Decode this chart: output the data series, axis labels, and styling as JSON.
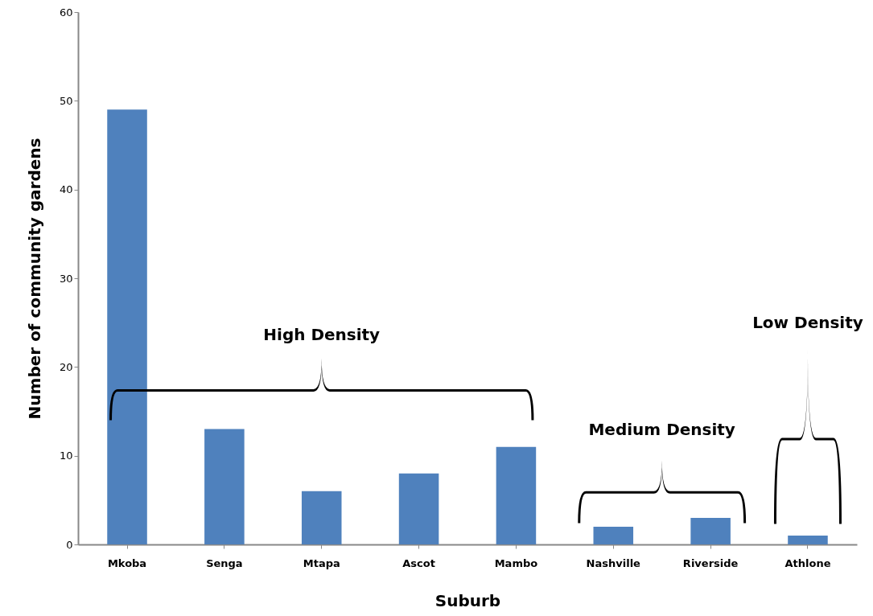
{
  "chart_data": {
    "type": "bar",
    "xlabel": "Suburb",
    "ylabel": "Number of community gardens",
    "categories": [
      "Mkoba",
      "Senga",
      "Mtapa",
      "Ascot",
      "Mambo",
      "Nashville",
      "Riverside",
      "Athlone"
    ],
    "values": [
      49,
      13,
      6,
      8,
      11,
      2,
      3,
      1
    ],
    "color": "#4f81bd",
    "ylim": [
      0,
      60
    ],
    "yticks": [
      0,
      10,
      20,
      30,
      40,
      50,
      60
    ],
    "grid": false,
    "annotations": [
      "High Density",
      "Medium Density",
      "Low Density"
    ]
  }
}
